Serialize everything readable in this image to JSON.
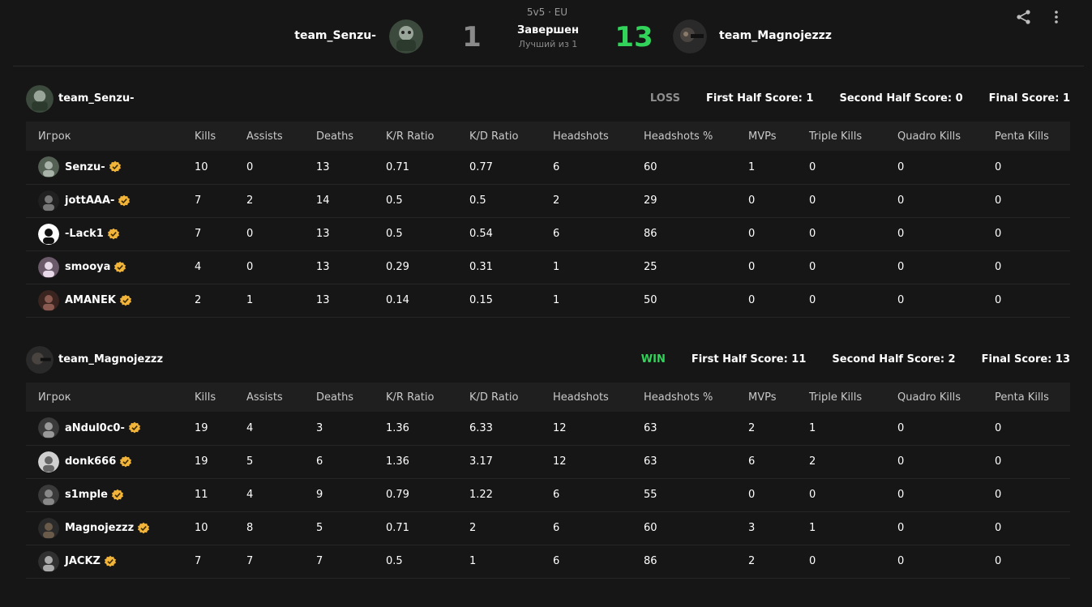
{
  "header": {
    "mode": "5v5 · EU",
    "team1_name": "team_Senzu-",
    "team2_name": "team_Magnojezzz",
    "score1": "1",
    "score2": "13",
    "status": "Завершен",
    "best_of": "Лучший из 1",
    "icons": [
      "share-icon",
      "more-vertical-icon"
    ]
  },
  "columns": [
    "Игрок",
    "Kills",
    "Assists",
    "Deaths",
    "K/R Ratio",
    "K/D Ratio",
    "Headshots",
    "Headshots %",
    "MVPs",
    "Triple Kills",
    "Quadro Kills",
    "Penta Kills"
  ],
  "teams": [
    {
      "name": "team_Senzu-",
      "result": "LOSS",
      "first_half": "First Half Score: 1",
      "second_half": "Second Half Score: 0",
      "final": "Final Score: 1",
      "players": [
        {
          "name": "Senzu-",
          "stats": [
            "10",
            "0",
            "13",
            "0.71",
            "0.77",
            "6",
            "60",
            "1",
            "0",
            "0",
            "0"
          ]
        },
        {
          "name": "jottAAA-",
          "stats": [
            "7",
            "2",
            "14",
            "0.5",
            "0.5",
            "2",
            "29",
            "0",
            "0",
            "0",
            "0"
          ]
        },
        {
          "name": "-Lack1",
          "stats": [
            "7",
            "0",
            "13",
            "0.5",
            "0.54",
            "6",
            "86",
            "0",
            "0",
            "0",
            "0"
          ]
        },
        {
          "name": "smooya",
          "stats": [
            "4",
            "0",
            "13",
            "0.29",
            "0.31",
            "1",
            "25",
            "0",
            "0",
            "0",
            "0"
          ]
        },
        {
          "name": "AMANEK",
          "stats": [
            "2",
            "1",
            "13",
            "0.14",
            "0.15",
            "1",
            "50",
            "0",
            "0",
            "0",
            "0"
          ]
        }
      ]
    },
    {
      "name": "team_Magnojezzz",
      "result": "WIN",
      "first_half": "First Half Score: 11",
      "second_half": "Second Half Score: 2",
      "final": "Final Score: 13",
      "players": [
        {
          "name": "aNdul0c0-",
          "stats": [
            "19",
            "4",
            "3",
            "1.36",
            "6.33",
            "12",
            "63",
            "2",
            "1",
            "0",
            "0"
          ]
        },
        {
          "name": "donk666",
          "stats": [
            "19",
            "5",
            "6",
            "1.36",
            "3.17",
            "12",
            "63",
            "6",
            "2",
            "0",
            "0"
          ]
        },
        {
          "name": "s1mple",
          "stats": [
            "11",
            "4",
            "9",
            "0.79",
            "1.22",
            "6",
            "55",
            "0",
            "0",
            "0",
            "0"
          ]
        },
        {
          "name": "Magnojezzz",
          "stats": [
            "10",
            "8",
            "5",
            "0.71",
            "2",
            "6",
            "60",
            "3",
            "1",
            "0",
            "0"
          ]
        },
        {
          "name": "JACKZ",
          "stats": [
            "7",
            "7",
            "7",
            "0.5",
            "1",
            "6",
            "86",
            "2",
            "0",
            "0",
            "0"
          ]
        }
      ]
    }
  ],
  "colors": {
    "background": "#161616",
    "header_row": "#1f1f1f",
    "win": "#32d35a",
    "loss": "#8e8e8e",
    "verified_badge": "#f2b53a"
  }
}
